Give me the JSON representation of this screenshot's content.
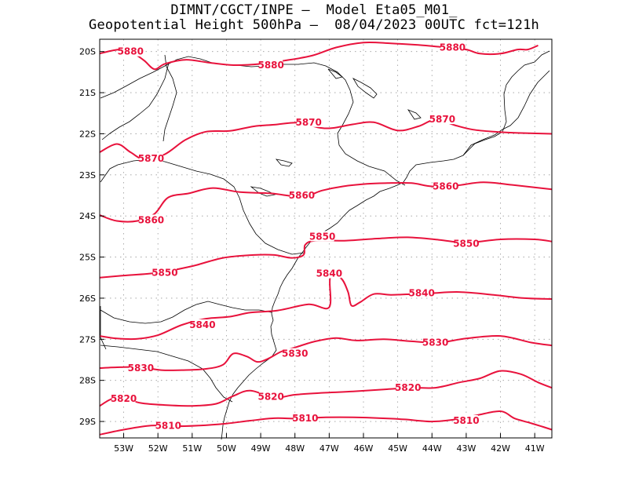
{
  "header": {
    "line1": "DIMNT/CGCT/INPE –  Model Eta05_M01_",
    "line2": "Geopotential Height 500hPa –  08/04/2023 00UTC fct=121h"
  },
  "colors": {
    "contour": "#e8123c",
    "coast": "#000000",
    "grid": "#9a9a9a",
    "frame": "#000000"
  },
  "chart_data": {
    "type": "contour-map",
    "title": "Geopotential Height 500hPa",
    "variable": "Geopotential Height 500hPa",
    "xlim": [
      -53.7,
      -40.5
    ],
    "ylim": [
      -29.4,
      -19.7
    ],
    "x_ticks": [
      {
        "value": -53,
        "label": "53W"
      },
      {
        "value": -52,
        "label": "52W"
      },
      {
        "value": -51,
        "label": "51W"
      },
      {
        "value": -50,
        "label": "50W"
      },
      {
        "value": -49,
        "label": "49W"
      },
      {
        "value": -48,
        "label": "48W"
      },
      {
        "value": -47,
        "label": "47W"
      },
      {
        "value": -46,
        "label": "46W"
      },
      {
        "value": -45,
        "label": "45W"
      },
      {
        "value": -44,
        "label": "44W"
      },
      {
        "value": -43,
        "label": "43W"
      },
      {
        "value": -42,
        "label": "42W"
      },
      {
        "value": -41,
        "label": "41W"
      }
    ],
    "y_ticks": [
      {
        "value": -20,
        "label": "20S"
      },
      {
        "value": -21,
        "label": "21S"
      },
      {
        "value": -22,
        "label": "22S"
      },
      {
        "value": -23,
        "label": "23S"
      },
      {
        "value": -24,
        "label": "24S"
      },
      {
        "value": -25,
        "label": "25S"
      },
      {
        "value": -26,
        "label": "26S"
      },
      {
        "value": -27,
        "label": "27S"
      },
      {
        "value": -28,
        "label": "28S"
      },
      {
        "value": -29,
        "label": "29S"
      }
    ],
    "contours": [
      {
        "level": "5880",
        "points": [
          [
            -53.7,
            -20.05
          ],
          [
            -53.3,
            -19.97
          ],
          [
            -53.0,
            -19.95
          ],
          [
            -52.7,
            -20.05
          ],
          [
            -52.4,
            -20.22
          ],
          [
            -52.1,
            -20.43
          ],
          [
            -51.8,
            -20.3
          ],
          [
            -51.2,
            -20.2
          ],
          [
            -50.5,
            -20.27
          ],
          [
            -49.8,
            -20.33
          ],
          [
            -49.0,
            -20.3
          ],
          [
            -48.3,
            -20.22
          ],
          [
            -47.5,
            -20.1
          ],
          [
            -46.8,
            -19.9
          ],
          [
            -46.0,
            -19.78
          ],
          [
            -45.2,
            -19.8
          ],
          [
            -44.4,
            -19.84
          ],
          [
            -43.6,
            -19.9
          ],
          [
            -43.0,
            -19.95
          ],
          [
            -42.6,
            -20.05
          ],
          [
            -42.0,
            -20.05
          ],
          [
            -41.5,
            -19.95
          ],
          [
            -41.2,
            -19.95
          ],
          [
            -40.9,
            -19.85
          ]
        ],
        "labels": [
          [
            -52.8,
            -20.0
          ],
          [
            -48.7,
            -20.33
          ],
          [
            -43.4,
            -19.9
          ]
        ]
      },
      {
        "level": "5870",
        "points": [
          [
            -53.7,
            -22.45
          ],
          [
            -53.2,
            -22.25
          ],
          [
            -52.8,
            -22.45
          ],
          [
            -52.4,
            -22.62
          ],
          [
            -51.8,
            -22.5
          ],
          [
            -51.2,
            -22.15
          ],
          [
            -50.6,
            -21.95
          ],
          [
            -49.9,
            -21.93
          ],
          [
            -49.2,
            -21.82
          ],
          [
            -48.6,
            -21.78
          ],
          [
            -47.9,
            -21.73
          ],
          [
            -47.3,
            -21.85
          ],
          [
            -46.9,
            -21.86
          ],
          [
            -46.3,
            -21.77
          ],
          [
            -45.7,
            -21.72
          ],
          [
            -45.0,
            -21.92
          ],
          [
            -44.4,
            -21.82
          ],
          [
            -43.9,
            -21.66
          ],
          [
            -43.3,
            -21.8
          ],
          [
            -42.8,
            -21.9
          ],
          [
            -42.2,
            -21.95
          ],
          [
            -41.5,
            -21.98
          ],
          [
            -40.5,
            -22.0
          ]
        ],
        "labels": [
          [
            -47.6,
            -21.72
          ],
          [
            -52.2,
            -22.6
          ],
          [
            -43.7,
            -21.65
          ]
        ]
      },
      {
        "level": "5860",
        "points": [
          [
            -53.7,
            -23.98
          ],
          [
            -53.2,
            -24.12
          ],
          [
            -52.6,
            -24.12
          ],
          [
            -52.1,
            -23.95
          ],
          [
            -51.7,
            -23.55
          ],
          [
            -51.1,
            -23.45
          ],
          [
            -50.4,
            -23.32
          ],
          [
            -49.6,
            -23.42
          ],
          [
            -48.7,
            -23.45
          ],
          [
            -47.8,
            -23.53
          ],
          [
            -47.2,
            -23.38
          ],
          [
            -46.6,
            -23.28
          ],
          [
            -45.9,
            -23.22
          ],
          [
            -45.3,
            -23.2
          ],
          [
            -44.6,
            -23.2
          ],
          [
            -44.0,
            -23.28
          ],
          [
            -43.3,
            -23.26
          ],
          [
            -42.5,
            -23.18
          ],
          [
            -41.6,
            -23.25
          ],
          [
            -40.5,
            -23.35
          ]
        ],
        "labels": [
          [
            -52.2,
            -24.1
          ],
          [
            -47.8,
            -23.5
          ],
          [
            -43.6,
            -23.28
          ]
        ]
      },
      {
        "level": "5850",
        "points": [
          [
            -53.7,
            -25.5
          ],
          [
            -53.0,
            -25.45
          ],
          [
            -52.0,
            -25.38
          ],
          [
            -51.0,
            -25.22
          ],
          [
            -50.1,
            -25.02
          ],
          [
            -49.2,
            -24.95
          ],
          [
            -48.6,
            -24.95
          ],
          [
            -48.1,
            -25.02
          ],
          [
            -47.75,
            -24.95
          ],
          [
            -47.7,
            -24.7
          ],
          [
            -47.4,
            -24.6
          ],
          [
            -46.5,
            -24.6
          ],
          [
            -45.6,
            -24.55
          ],
          [
            -44.7,
            -24.52
          ],
          [
            -43.8,
            -24.58
          ],
          [
            -43.0,
            -24.65
          ],
          [
            -42.0,
            -24.57
          ],
          [
            -41.0,
            -24.57
          ],
          [
            -40.5,
            -24.62
          ]
        ],
        "labels": [
          [
            -51.8,
            -25.38
          ],
          [
            -47.2,
            -24.5
          ],
          [
            -43.0,
            -24.67
          ]
        ]
      },
      {
        "level": "5840",
        "points": [
          [
            -53.7,
            -26.92
          ],
          [
            -53.2,
            -26.98
          ],
          [
            -52.6,
            -26.99
          ],
          [
            -52.0,
            -26.9
          ],
          [
            -51.3,
            -26.65
          ],
          [
            -50.6,
            -26.5
          ],
          [
            -49.9,
            -26.45
          ],
          [
            -49.3,
            -26.35
          ],
          [
            -48.5,
            -26.3
          ],
          [
            -47.6,
            -26.15
          ],
          [
            -47.0,
            -26.22
          ],
          [
            -46.97,
            -25.5
          ],
          [
            -46.65,
            -25.52
          ],
          [
            -46.45,
            -25.85
          ],
          [
            -46.35,
            -26.18
          ],
          [
            -46.1,
            -26.1
          ],
          [
            -45.7,
            -25.9
          ],
          [
            -45.2,
            -25.92
          ],
          [
            -44.6,
            -25.9
          ],
          [
            -44.0,
            -25.88
          ],
          [
            -43.2,
            -25.85
          ],
          [
            -42.2,
            -25.92
          ],
          [
            -41.3,
            -26.0
          ],
          [
            -40.5,
            -26.02
          ]
        ],
        "labels": [
          [
            -50.7,
            -26.65
          ],
          [
            -47.0,
            -25.4
          ],
          [
            -44.3,
            -25.88
          ]
        ]
      },
      {
        "level": "5830",
        "points": [
          [
            -53.7,
            -27.7
          ],
          [
            -53.1,
            -27.68
          ],
          [
            -52.5,
            -27.68
          ],
          [
            -51.9,
            -27.75
          ],
          [
            -51.3,
            -27.75
          ],
          [
            -50.6,
            -27.72
          ],
          [
            -50.1,
            -27.62
          ],
          [
            -49.8,
            -27.35
          ],
          [
            -49.4,
            -27.42
          ],
          [
            -49.1,
            -27.55
          ],
          [
            -48.8,
            -27.48
          ],
          [
            -48.4,
            -27.3
          ],
          [
            -48.0,
            -27.2
          ],
          [
            -47.4,
            -27.05
          ],
          [
            -46.8,
            -26.97
          ],
          [
            -46.2,
            -27.03
          ],
          [
            -45.4,
            -27.0
          ],
          [
            -44.6,
            -27.05
          ],
          [
            -43.8,
            -27.08
          ],
          [
            -43.0,
            -26.98
          ],
          [
            -42.0,
            -26.92
          ],
          [
            -41.1,
            -27.08
          ],
          [
            -40.5,
            -27.15
          ]
        ],
        "labels": [
          [
            -52.5,
            -27.7
          ],
          [
            -48.0,
            -27.35
          ],
          [
            -43.9,
            -27.08
          ]
        ]
      },
      {
        "level": "5820",
        "points": [
          [
            -53.7,
            -28.62
          ],
          [
            -53.2,
            -28.42
          ],
          [
            -52.5,
            -28.55
          ],
          [
            -51.8,
            -28.6
          ],
          [
            -51.0,
            -28.62
          ],
          [
            -50.3,
            -28.57
          ],
          [
            -49.8,
            -28.38
          ],
          [
            -49.3,
            -28.25
          ],
          [
            -48.6,
            -28.42
          ],
          [
            -48.0,
            -28.35
          ],
          [
            -47.1,
            -28.3
          ],
          [
            -46.3,
            -28.27
          ],
          [
            -45.4,
            -28.22
          ],
          [
            -44.6,
            -28.18
          ],
          [
            -43.9,
            -28.18
          ],
          [
            -43.2,
            -28.05
          ],
          [
            -42.6,
            -27.95
          ],
          [
            -42.0,
            -27.77
          ],
          [
            -41.4,
            -27.85
          ],
          [
            -40.9,
            -28.05
          ],
          [
            -40.5,
            -28.18
          ]
        ],
        "labels": [
          [
            -53.0,
            -28.45
          ],
          [
            -48.7,
            -28.4
          ],
          [
            -44.7,
            -28.18
          ]
        ]
      },
      {
        "level": "5810",
        "points": [
          [
            -53.7,
            -29.32
          ],
          [
            -53.0,
            -29.2
          ],
          [
            -52.2,
            -29.1
          ],
          [
            -51.6,
            -29.12
          ],
          [
            -50.8,
            -29.1
          ],
          [
            -50.0,
            -29.05
          ],
          [
            -49.3,
            -28.98
          ],
          [
            -48.6,
            -28.92
          ],
          [
            -47.9,
            -28.93
          ],
          [
            -47.1,
            -28.9
          ],
          [
            -46.3,
            -28.9
          ],
          [
            -45.5,
            -28.92
          ],
          [
            -44.8,
            -28.95
          ],
          [
            -44.0,
            -29.0
          ],
          [
            -43.3,
            -28.95
          ],
          [
            -42.7,
            -28.85
          ],
          [
            -42.0,
            -28.75
          ],
          [
            -41.6,
            -28.92
          ],
          [
            -41.2,
            -29.02
          ],
          [
            -40.8,
            -29.12
          ],
          [
            -40.5,
            -29.2
          ]
        ],
        "labels": [
          [
            -51.7,
            -29.1
          ],
          [
            -47.7,
            -28.92
          ],
          [
            -43.0,
            -28.98
          ]
        ]
      }
    ]
  }
}
